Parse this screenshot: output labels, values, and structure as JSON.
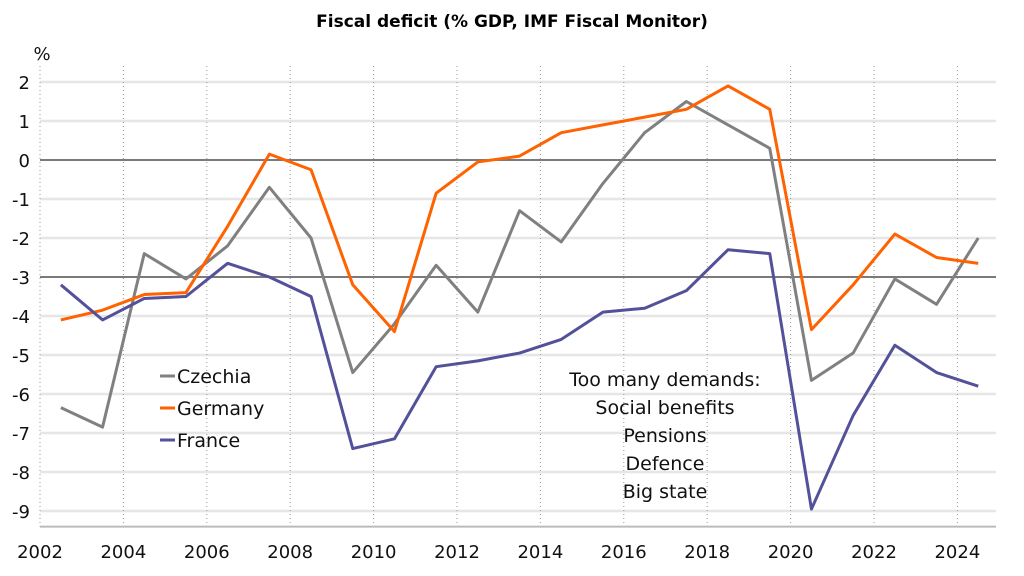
{
  "chart_data": {
    "type": "line",
    "title": "Fiscal deficit (% GDP, IMF Fiscal Monitor)",
    "ylabel": "%",
    "xlabel": "",
    "ylim": [
      -9.4,
      2.5
    ],
    "xlim": [
      2002,
      2025
    ],
    "yticks": [
      2,
      1,
      0,
      -1,
      -2,
      -3,
      -4,
      -5,
      -6,
      -7,
      -8,
      -9
    ],
    "xticks": [
      2002,
      2004,
      2006,
      2008,
      2010,
      2012,
      2014,
      2016,
      2018,
      2020,
      2022,
      2024
    ],
    "reference_lines": [
      0,
      -3
    ],
    "grid": true,
    "legend_position": "center-left",
    "x": [
      2002,
      2003,
      2004,
      2005,
      2006,
      2007,
      2008,
      2009,
      2010,
      2011,
      2012,
      2013,
      2014,
      2015,
      2016,
      2017,
      2018,
      2019,
      2020,
      2021,
      2022,
      2023,
      2024
    ],
    "series": [
      {
        "name": "Czechia",
        "color": "#808080",
        "values": [
          -6.35,
          -6.85,
          -2.4,
          -3.05,
          -2.2,
          -0.7,
          -2.0,
          -5.45,
          -4.2,
          -2.7,
          -3.9,
          -1.3,
          -2.1,
          -0.6,
          0.7,
          1.5,
          0.9,
          0.3,
          -5.65,
          -4.95,
          -3.05,
          -3.7,
          -2.0
        ]
      },
      {
        "name": "Germany",
        "color": "#ff6200",
        "values": [
          -4.1,
          -3.85,
          -3.45,
          -3.4,
          -1.7,
          0.15,
          -0.25,
          -3.2,
          -4.4,
          -0.85,
          -0.05,
          0.1,
          0.7,
          0.9,
          1.1,
          1.3,
          1.9,
          1.3,
          -4.35,
          -3.2,
          -1.9,
          -2.5,
          -2.65
        ]
      },
      {
        "name": "France",
        "color": "#525199",
        "values": [
          -3.2,
          -4.1,
          -3.55,
          -3.5,
          -2.65,
          -3.0,
          -3.5,
          -7.4,
          -7.15,
          -5.3,
          -5.15,
          -4.95,
          -4.6,
          -3.9,
          -3.8,
          -3.35,
          -2.3,
          -2.4,
          -8.95,
          -6.55,
          -4.75,
          -5.45,
          -5.8
        ]
      }
    ],
    "annotation": [
      "Too many demands:",
      "Social benefits",
      "Pensions",
      "Defence",
      "Big state"
    ]
  }
}
